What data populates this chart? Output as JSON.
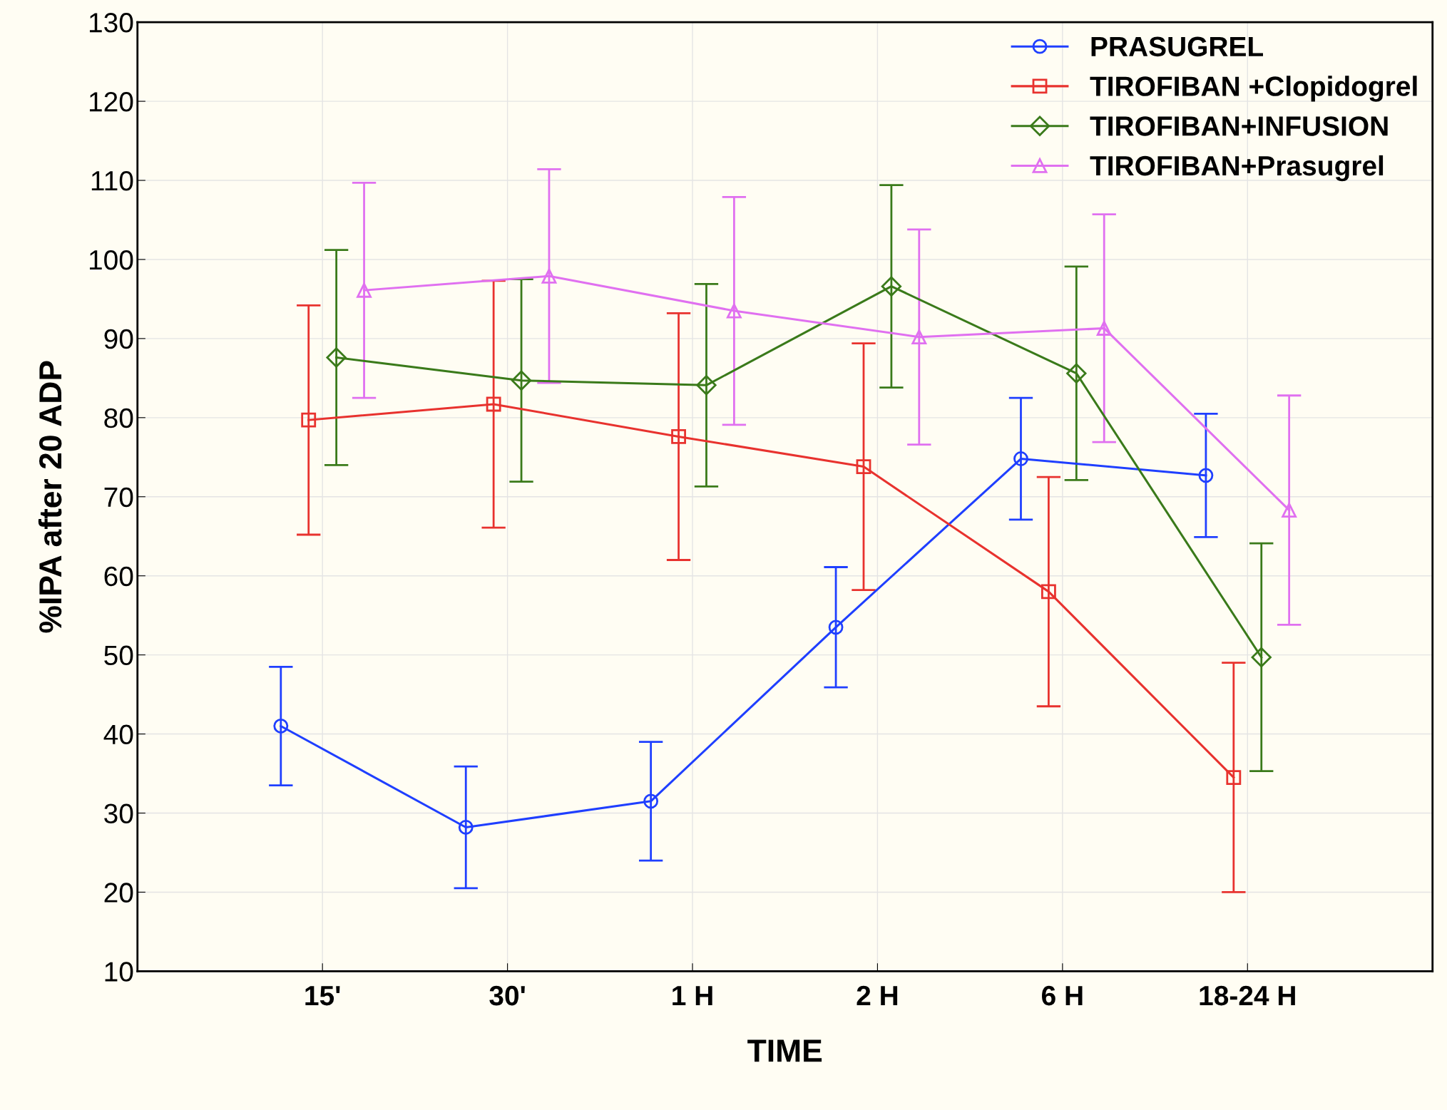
{
  "chart_data": {
    "type": "line",
    "xlabel": "TIME",
    "ylabel": "%IPA after 20 ADP",
    "categories": [
      "15'",
      "30'",
      "1 H",
      "2 H",
      "6 H",
      "18-24 H"
    ],
    "ylim": [
      10,
      130
    ],
    "yticks": [
      10,
      20,
      30,
      40,
      50,
      60,
      70,
      80,
      90,
      100,
      110,
      120,
      130
    ],
    "grid": true,
    "legend": "top right",
    "series": [
      {
        "name": "PRASUGREL",
        "color": "#1f3fff",
        "marker": "circle",
        "values": [
          41,
          28.2,
          31.5,
          53.5,
          74.8,
          72.7
        ],
        "errors": [
          7.5,
          7.7,
          7.5,
          7.6,
          7.7,
          7.8
        ]
      },
      {
        "name": "TIROFIBAN +Clopidogrel",
        "color": "#e8322e",
        "marker": "square",
        "values": [
          79.7,
          81.7,
          77.6,
          73.8,
          58,
          34.5
        ],
        "errors": [
          14.5,
          15.6,
          15.6,
          15.6,
          14.5,
          14.5
        ]
      },
      {
        "name": "TIROFIBAN+INFUSION",
        "color": "#3a7a1a",
        "marker": "diamond",
        "values": [
          87.6,
          84.7,
          84.1,
          96.6,
          85.6,
          49.7
        ],
        "errors": [
          13.6,
          12.8,
          12.8,
          12.8,
          13.5,
          14.4
        ]
      },
      {
        "name": "TIROFIBAN+Prasugrel",
        "color": "#e070f0",
        "marker": "triangle",
        "values": [
          96.1,
          97.9,
          93.5,
          90.2,
          91.3,
          68.3
        ],
        "errors": [
          13.6,
          13.5,
          14.4,
          13.6,
          14.4,
          14.5
        ]
      }
    ]
  }
}
